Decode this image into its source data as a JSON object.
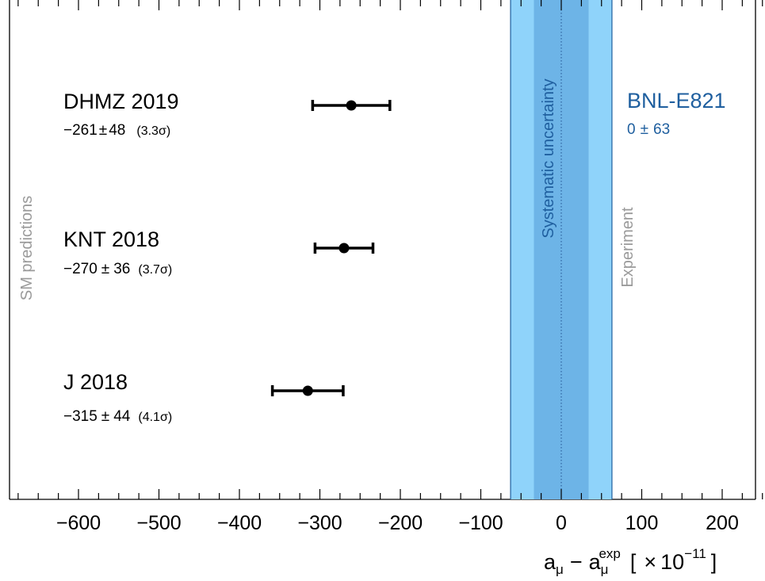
{
  "chart_data": {
    "type": "scatter",
    "title": "",
    "xlabel": {
      "base": "a",
      "sub1": "μ",
      "minus": "−",
      "base2": "a",
      "sub2": "μ",
      "sup2": "exp",
      "scale_open": "[",
      "times": "×",
      "ten": "10",
      "exponent": "−11",
      "scale_close": "]"
    },
    "xlim": [
      -690,
      250
    ],
    "x_major_ticks": [
      -600,
      -500,
      -400,
      -300,
      -200,
      -100,
      0,
      100,
      200
    ],
    "x_tick_labels": [
      "−600",
      "−500",
      "−400",
      "−300",
      "−200",
      "−100",
      "0",
      "100",
      "200"
    ],
    "x_minor_step": 25,
    "grid": false,
    "points": [
      {
        "name": "DHMZ 2019",
        "value": -261,
        "error": 48,
        "label": "−261",
        "pm": "±",
        "error_label": "48",
        "significance": "(3.3σ)"
      },
      {
        "name": "KNT 2018",
        "value": -270,
        "error": 36,
        "label": "−270",
        "pm": "±",
        "error_label": "36",
        "significance": "(3.7σ)"
      },
      {
        "name": "J 2018",
        "value": -315,
        "error": 44,
        "label": "−315",
        "pm": "±",
        "error_label": "44",
        "significance": "(4.1σ)"
      }
    ],
    "experiment": {
      "name": "BNL-E821",
      "value": 0,
      "error": 63,
      "systematic_half_width": 34,
      "label": "0",
      "pm": "±",
      "error_label": "63",
      "band_label": "Systematic uncertainty",
      "side_label": "Experiment"
    },
    "left_label": "SM predictions",
    "colors": {
      "points": "#000000",
      "band_outer": "#8fd3fa",
      "band_inner": "#6db4e7",
      "band_edge": "#1f5f9f",
      "experiment_text": "#1f5f9f",
      "side_text": "#9a9a9a"
    }
  }
}
